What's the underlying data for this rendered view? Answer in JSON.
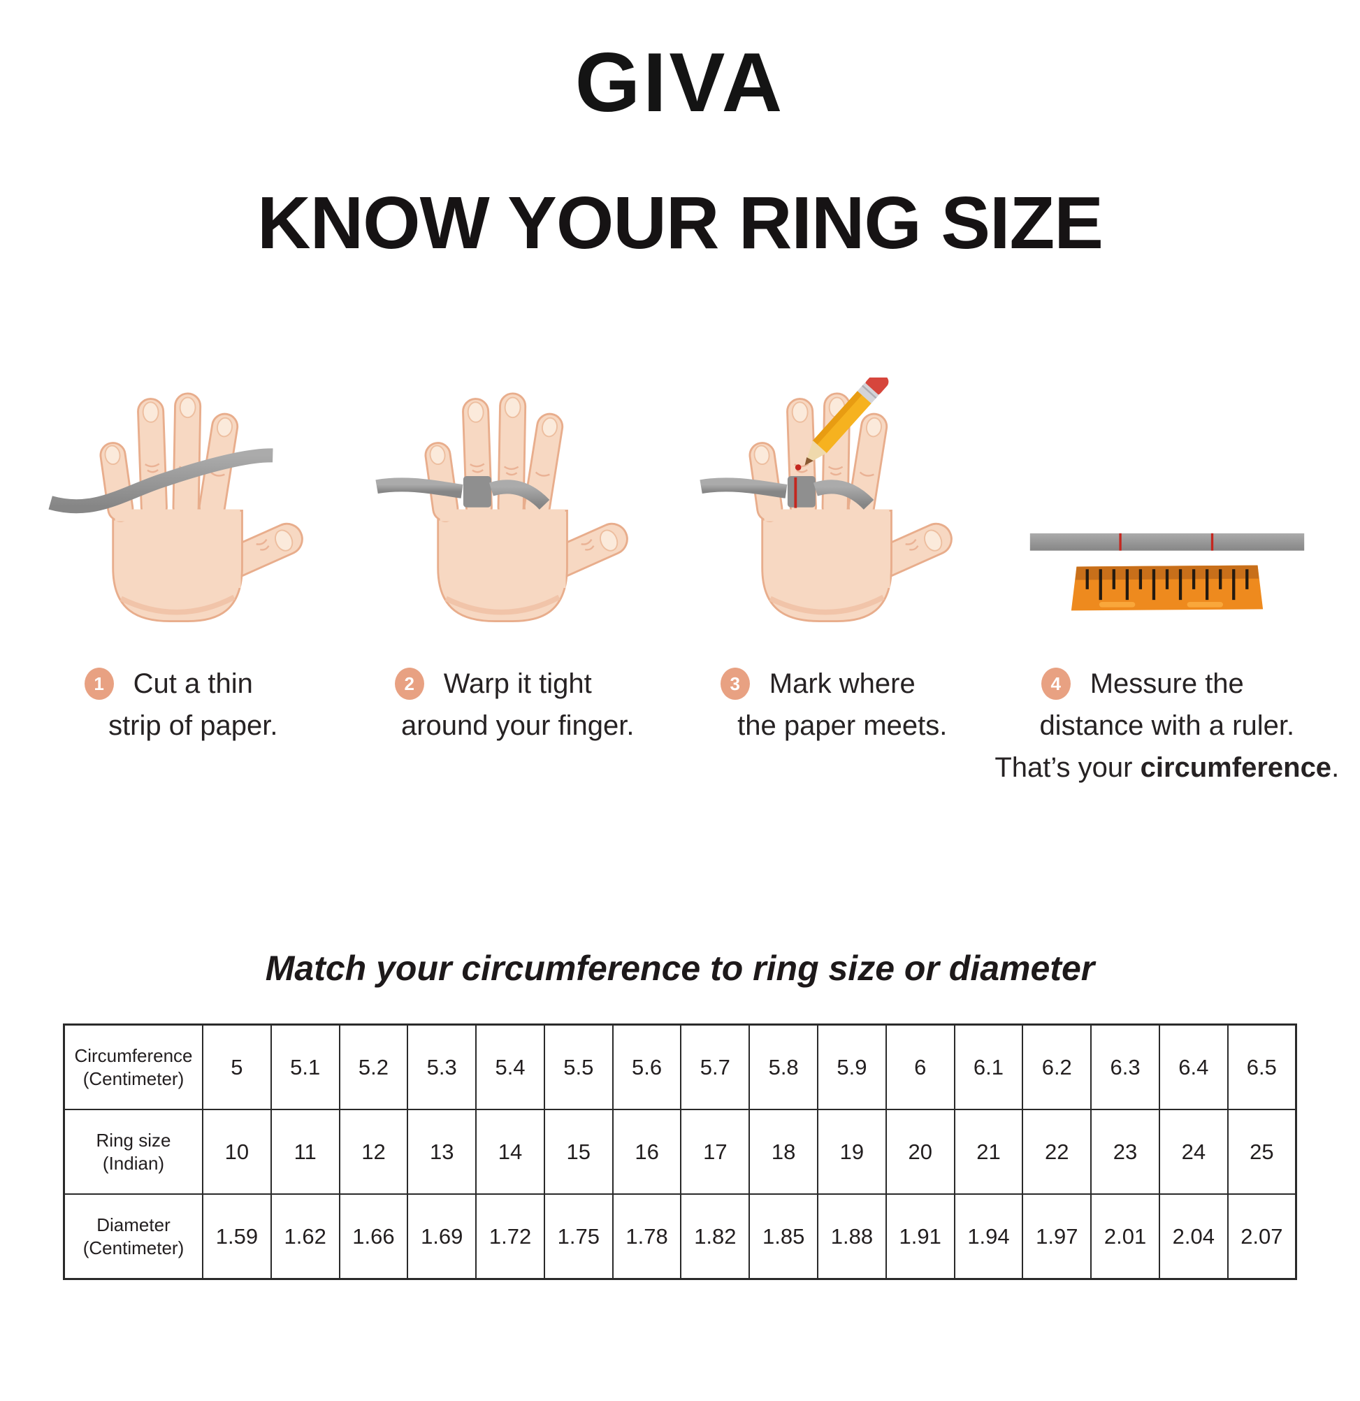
{
  "brand": "GIVA",
  "title": "KNOW YOUR RING SIZE",
  "steps": [
    {
      "number": "1",
      "line1": "Cut a thin",
      "line2": "strip of paper."
    },
    {
      "number": "2",
      "line1": "Warp it tight",
      "line2": "around your finger."
    },
    {
      "number": "3",
      "line1": "Mark where",
      "line2": "the paper meets."
    },
    {
      "number": "4",
      "line1": "Messure the",
      "line2": "distance with a ruler.",
      "line3_prefix": "That’s your ",
      "line3_bold": "circumference",
      "line3_suffix": "."
    }
  ],
  "match_title": "Match your circumference to ring size or diameter",
  "table": {
    "rows": [
      {
        "label_line1": "Circumference",
        "label_line2": "(Centimeter)",
        "values": [
          "5",
          "5.1",
          "5.2",
          "5.3",
          "5.4",
          "5.5",
          "5.6",
          "5.7",
          "5.8",
          "5.9",
          "6",
          "6.1",
          "6.2",
          "6.3",
          "6.4",
          "6.5"
        ]
      },
      {
        "label_line1": "Ring size",
        "label_line2": "(Indian)",
        "values": [
          "10",
          "11",
          "12",
          "13",
          "14",
          "15",
          "16",
          "17",
          "18",
          "19",
          "20",
          "21",
          "22",
          "23",
          "24",
          "25"
        ]
      },
      {
        "label_line1": "Diameter",
        "label_line2": "(Centimeter)",
        "values": [
          "1.59",
          "1.62",
          "1.66",
          "1.69",
          "1.72",
          "1.75",
          "1.78",
          "1.82",
          "1.85",
          "1.88",
          "1.91",
          "1.94",
          "1.97",
          "2.01",
          "2.04",
          "2.07"
        ]
      }
    ]
  },
  "colors": {
    "badge_accent": "#E8A182",
    "skin": "#F7D8C2",
    "skin_outline": "#E8AD8C",
    "paper_gray": "#9A9A9A",
    "ruler_orange": "#EE8A1E",
    "ruler_dark_orange": "#C86F1A",
    "pencil_yellow": "#F6B21F",
    "eraser_red": "#D6463C",
    "mark_red": "#C4271F",
    "text_black": "#1d191a"
  }
}
